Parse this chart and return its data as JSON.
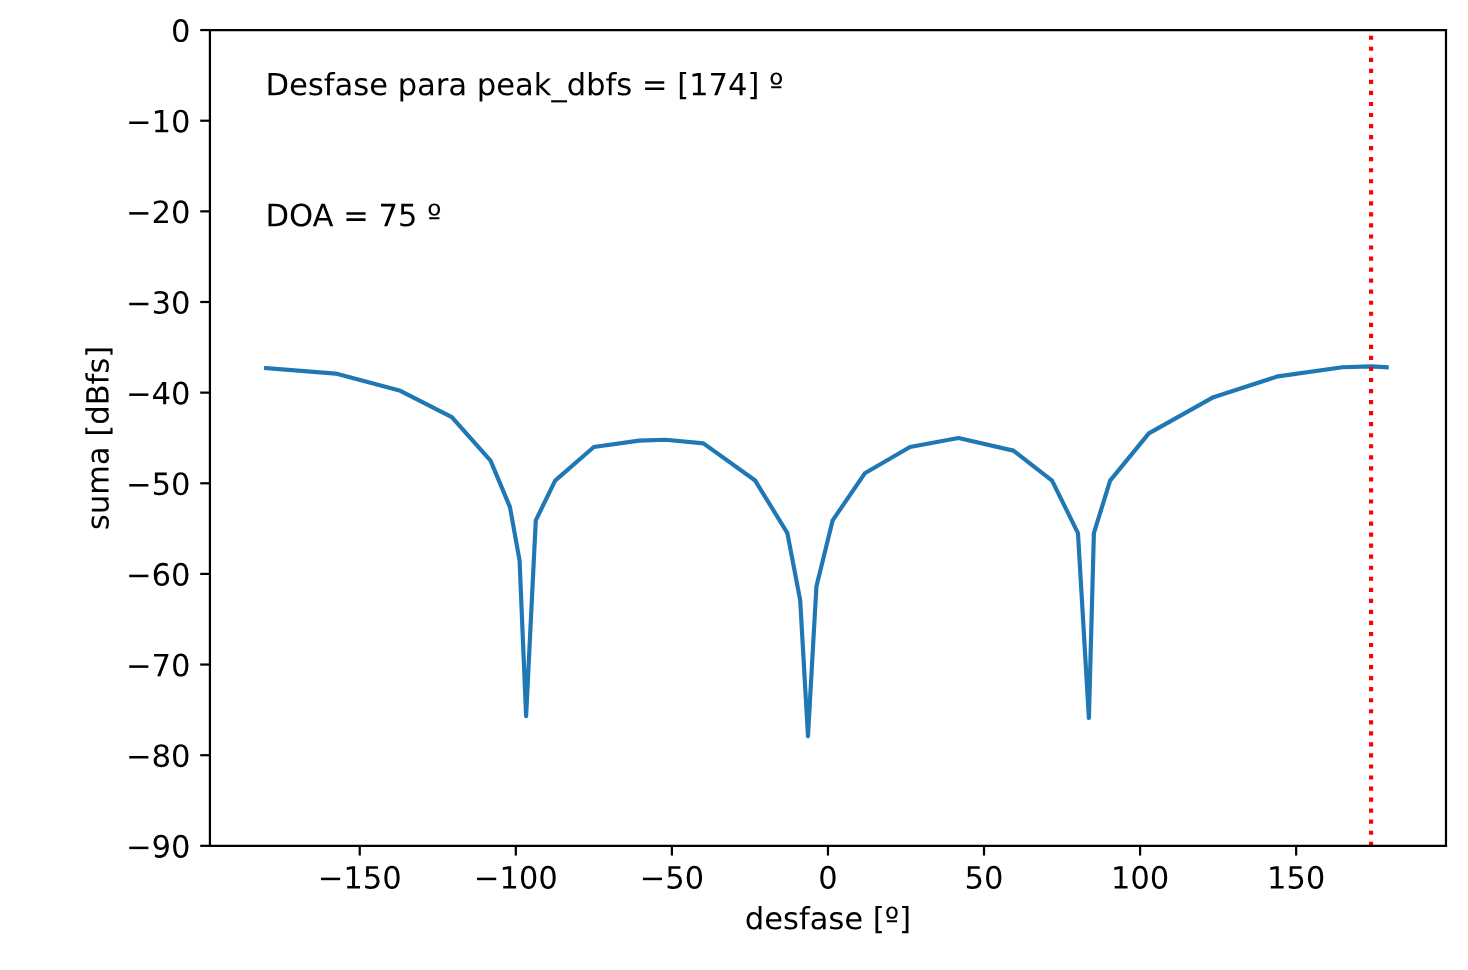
{
  "chart_data": {
    "type": "line",
    "xlabel": "desfase [º]",
    "ylabel": "suma [dBfs]",
    "annotations": [
      "Desfase para peak_dbfs = [174] º",
      "DOA = 75 º"
    ],
    "series": [
      {
        "color": "#1f77b4",
        "x": [
          -180,
          -157.7,
          -137,
          -120.5,
          -108.1,
          -101.9,
          -98.8,
          -96.7,
          -93.6,
          -87.4,
          -75,
          -60.5,
          -52,
          -39.9,
          -23.3,
          -13,
          -8.9,
          -6.4,
          -3.7,
          1.5,
          11.8,
          26.3,
          41.8,
          59.4,
          71.8,
          80.1,
          83.6,
          85.2,
          90.4,
          102.8,
          123.5,
          144.2,
          164.8,
          174,
          179
        ],
        "values": [
          -37.3,
          -37.9,
          -39.8,
          -42.7,
          -47.5,
          -52.6,
          -58.5,
          -75.7,
          -54.1,
          -49.7,
          -46,
          -45.3,
          -45.2,
          -45.6,
          -49.7,
          -55.5,
          -62.9,
          -77.9,
          -61.4,
          -54.1,
          -48.9,
          -46,
          -45,
          -46.4,
          -49.7,
          -55.5,
          -75.9,
          -55.5,
          -49.7,
          -44.5,
          -40.5,
          -38.2,
          -37.2,
          -37.1,
          -37.2
        ]
      }
    ],
    "ref_lines": [
      {
        "axis": "x",
        "value": 174,
        "color": "#ff0000",
        "line_style": "dotted"
      }
    ],
    "xlim": [
      -198,
      198
    ],
    "ylim": [
      -90,
      0
    ],
    "xticks": [
      {
        "value": -150,
        "label": "−150"
      },
      {
        "value": -100,
        "label": "−100"
      },
      {
        "value": -50,
        "label": "−50"
      },
      0,
      50,
      100,
      150
    ],
    "yticks": [
      {
        "value": -90,
        "label": "−90"
      },
      {
        "value": -80,
        "label": "−80"
      },
      {
        "value": -70,
        "label": "−70"
      },
      {
        "value": -60,
        "label": "−60"
      },
      {
        "value": -50,
        "label": "−50"
      },
      {
        "value": -40,
        "label": "−40"
      },
      {
        "value": -30,
        "label": "−30"
      },
      {
        "value": -20,
        "label": "−20"
      },
      {
        "value": -10,
        "label": "−10"
      },
      0
    ],
    "grid": false,
    "marker": "none",
    "line_style": "solid"
  }
}
